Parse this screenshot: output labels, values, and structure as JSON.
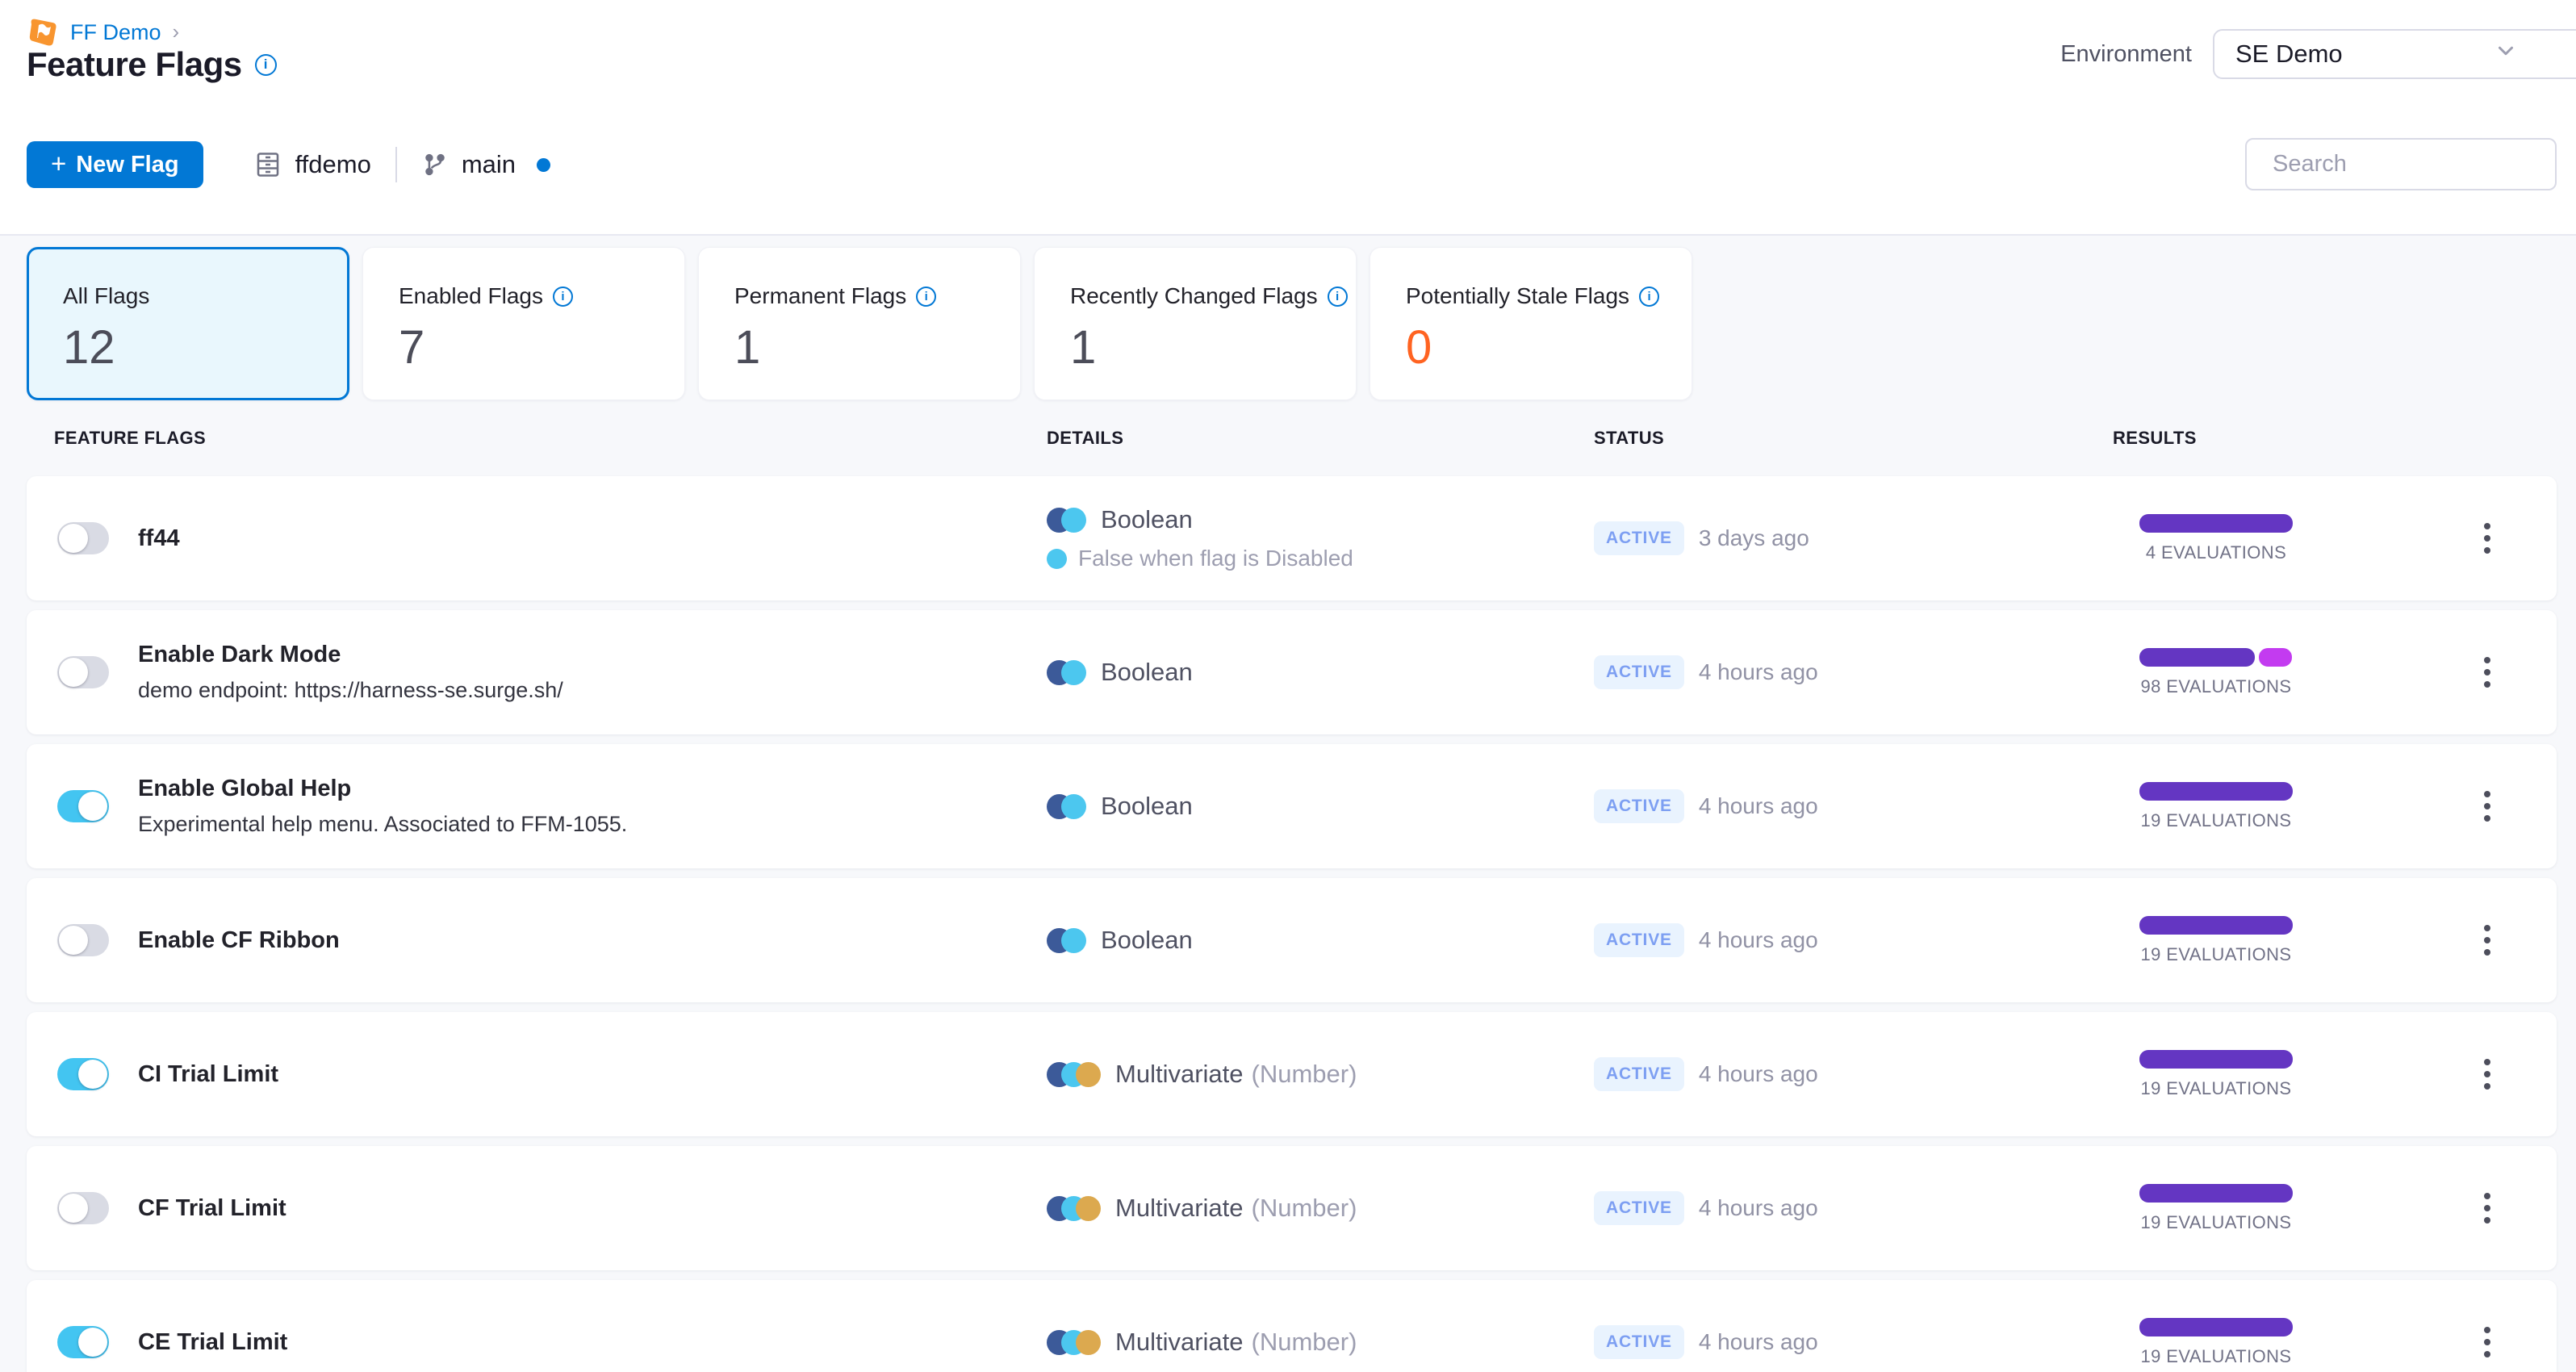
{
  "breadcrumb": {
    "project": "FF Demo",
    "chevron": "›"
  },
  "header": {
    "title": "Feature Flags",
    "environment_label": "Environment",
    "environment_value": "SE Demo"
  },
  "toolbar": {
    "new_flag_label": "New Flag",
    "repo_name": "ffdemo",
    "branch_name": "main",
    "search_placeholder": "Search"
  },
  "summary_cards": [
    {
      "label": "All Flags",
      "value": "12",
      "selected": true,
      "info": false,
      "highlight": ""
    },
    {
      "label": "Enabled Flags",
      "value": "7",
      "selected": false,
      "info": true,
      "highlight": ""
    },
    {
      "label": "Permanent Flags",
      "value": "1",
      "selected": false,
      "info": true,
      "highlight": ""
    },
    {
      "label": "Recently Changed Flags",
      "value": "1",
      "selected": false,
      "info": true,
      "highlight": ""
    },
    {
      "label": "Potentially Stale Flags",
      "value": "0",
      "selected": false,
      "info": true,
      "highlight": "orange"
    }
  ],
  "table": {
    "columns": [
      "FEATURE FLAGS",
      "DETAILS",
      "STATUS",
      "RESULTS"
    ]
  },
  "rows": [
    {
      "name": "ff44",
      "description": "",
      "enabled": false,
      "kind": "Boolean",
      "kind_suffix": "",
      "note": "False when flag is Disabled",
      "status": "ACTIVE",
      "updated": "3 days ago",
      "evaluations": "4 EVALUATIONS",
      "bar": [
        {
          "color": "purple",
          "pct": 100
        }
      ]
    },
    {
      "name": "Enable Dark Mode",
      "description": "demo endpoint: https://harness-se.surge.sh/",
      "enabled": false,
      "kind": "Boolean",
      "kind_suffix": "",
      "note": "",
      "status": "ACTIVE",
      "updated": "4 hours ago",
      "evaluations": "98 EVALUATIONS",
      "bar": [
        {
          "color": "purple",
          "pct": 75
        },
        {
          "color": "magenta",
          "pct": 22
        }
      ]
    },
    {
      "name": "Enable Global Help",
      "description": "Experimental help menu. Associated to FFM-1055.",
      "enabled": true,
      "kind": "Boolean",
      "kind_suffix": "",
      "note": "",
      "status": "ACTIVE",
      "updated": "4 hours ago",
      "evaluations": "19 EVALUATIONS",
      "bar": [
        {
          "color": "purple",
          "pct": 100
        }
      ]
    },
    {
      "name": "Enable CF Ribbon",
      "description": "",
      "enabled": false,
      "kind": "Boolean",
      "kind_suffix": "",
      "note": "",
      "status": "ACTIVE",
      "updated": "4 hours ago",
      "evaluations": "19 EVALUATIONS",
      "bar": [
        {
          "color": "purple",
          "pct": 100
        }
      ]
    },
    {
      "name": "CI Trial Limit",
      "description": "",
      "enabled": true,
      "kind": "Multivariate",
      "kind_suffix": "(Number)",
      "note": "",
      "status": "ACTIVE",
      "updated": "4 hours ago",
      "evaluations": "19 EVALUATIONS",
      "bar": [
        {
          "color": "purple",
          "pct": 100
        }
      ]
    },
    {
      "name": "CF Trial Limit",
      "description": "",
      "enabled": false,
      "kind": "Multivariate",
      "kind_suffix": "(Number)",
      "note": "",
      "status": "ACTIVE",
      "updated": "4 hours ago",
      "evaluations": "19 EVALUATIONS",
      "bar": [
        {
          "color": "purple",
          "pct": 100
        }
      ]
    },
    {
      "name": "CE Trial Limit",
      "description": "",
      "enabled": true,
      "kind": "Multivariate",
      "kind_suffix": "(Number)",
      "note": "",
      "status": "ACTIVE",
      "updated": "4 hours ago",
      "evaluations": "19 EVALUATIONS",
      "bar": [
        {
          "color": "purple",
          "pct": 100
        }
      ]
    }
  ],
  "colors": {
    "accent_blue": "#0278d5",
    "toggle_on": "#43c5f1",
    "toggle_off": "#d9dbe4",
    "purple": "#6436c2",
    "magenta": "#c33bf0",
    "orange": "#ff6321",
    "navy": "#3c5a99",
    "cyan": "#4cc7ef",
    "gold": "#dca94f",
    "badge_bg": "#e9f3fe",
    "badge_text": "#7d9ff2"
  }
}
